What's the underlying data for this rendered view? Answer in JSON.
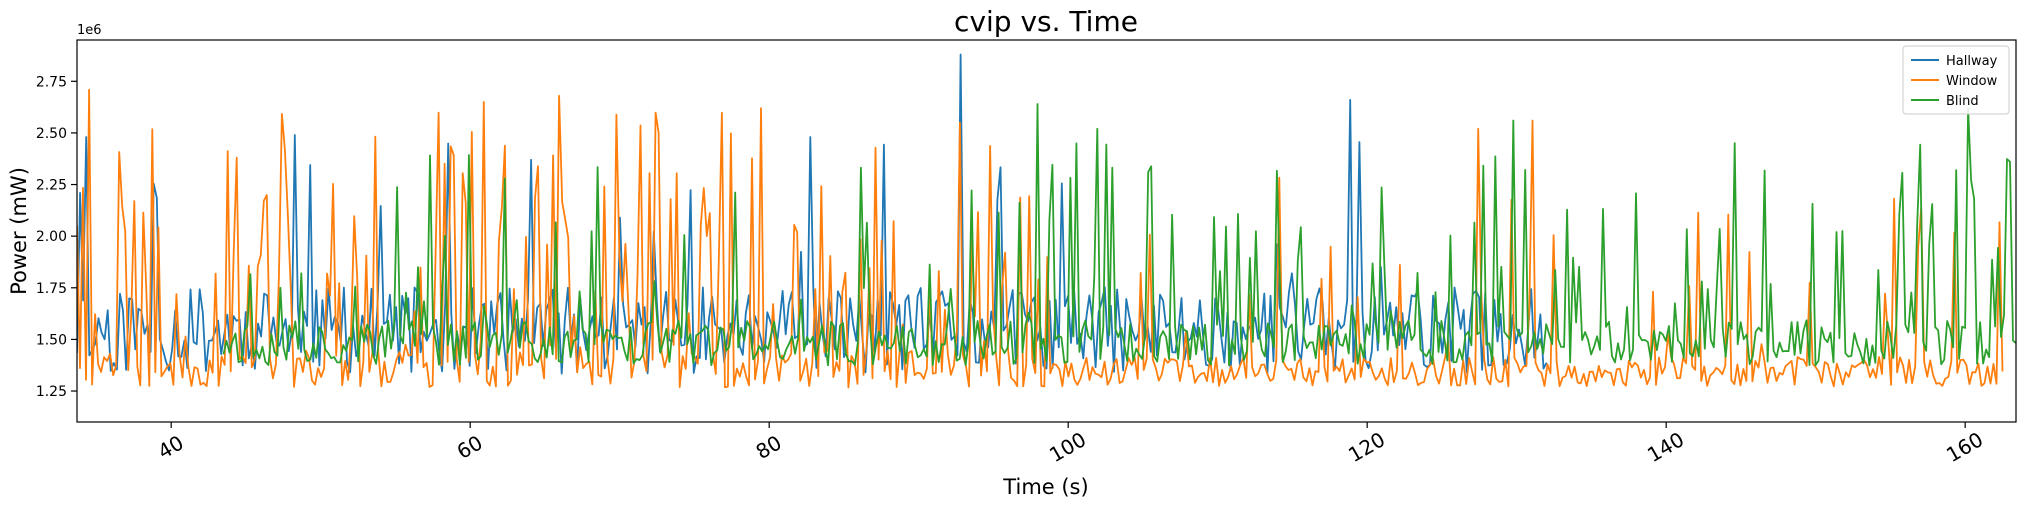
{
  "chart_data": {
    "type": "line",
    "title": "cvip vs. Time",
    "xlabel": "Time (s)",
    "ylabel": "Power (mW)",
    "y_offset_label": "1e6",
    "xlim": [
      33.7,
      163.4
    ],
    "ylim": [
      1100000,
      2950000
    ],
    "x_ticks": [
      40,
      60,
      80,
      100,
      120,
      140,
      160
    ],
    "x_tick_labels": [
      "40",
      "60",
      "80",
      "100",
      "120",
      "140",
      "160"
    ],
    "y_ticks": [
      1250000,
      1500000,
      1750000,
      2000000,
      2250000,
      2500000,
      2750000
    ],
    "y_tick_labels": [
      "1.25",
      "1.50",
      "1.75",
      "2.00",
      "2.25",
      "2.50",
      "2.75"
    ],
    "legend_position": "top-right",
    "grid": false,
    "series": [
      {
        "name": "Hallway",
        "color": "#1f77b4",
        "x_start": 33.7,
        "x_end": 132.0,
        "count": 480,
        "seed": 11,
        "base": 1480000,
        "spread": 420000,
        "spike_prob": 0.08,
        "spike_max": 2500000,
        "peaks": [
          [
            92.9,
            2880000
          ],
          [
            118.9,
            2660000
          ],
          [
            34.3,
            2480000
          ],
          [
            64.0,
            2370000
          ],
          [
            48.2,
            2490000
          ]
        ]
      },
      {
        "name": "Window",
        "color": "#ff7f0e",
        "x_start": 33.7,
        "x_end": 162.5,
        "count": 640,
        "seed": 23,
        "base": 1330000,
        "spread": 180000,
        "spike_prob": 0.42,
        "spike_max": 2600000,
        "decay_after": 96.0,
        "decay_spike_prob": 0.12,
        "decay_spike_max": 2300000,
        "peaks": [
          [
            34.6,
            2710000
          ],
          [
            66.0,
            2680000
          ],
          [
            61.0,
            2650000
          ],
          [
            79.4,
            2620000
          ],
          [
            131.0,
            2560000
          ],
          [
            127.5,
            2520000
          ],
          [
            92.8,
            2550000
          ]
        ]
      },
      {
        "name": "Blind",
        "color": "#2ca02c",
        "x_start": 43.5,
        "x_end": 163.4,
        "count": 600,
        "seed": 37,
        "base": 1450000,
        "spread": 220000,
        "spike_prob": 0.18,
        "spike_max": 2450000,
        "peaks": [
          [
            97.9,
            2640000
          ],
          [
            160.1,
            2620000
          ],
          [
            101.9,
            2520000
          ],
          [
            129.8,
            2560000
          ],
          [
            159.4,
            2320000
          ],
          [
            162.9,
            2360000
          ],
          [
            144.6,
            2450000
          ]
        ]
      }
    ]
  }
}
